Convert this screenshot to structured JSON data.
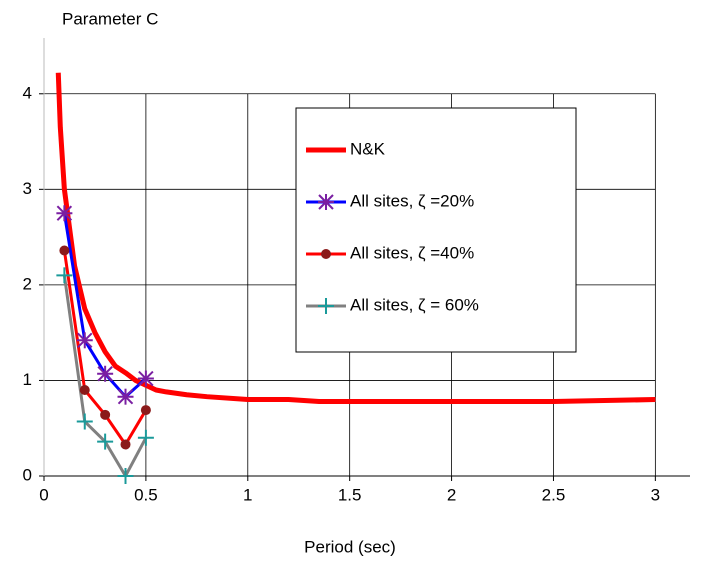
{
  "chart_data": {
    "type": "line",
    "y_label": "Parameter C",
    "x_label": "Period (sec)",
    "xlim": [
      0,
      3.17
    ],
    "ylim": [
      0,
      4.5
    ],
    "xticks": [
      0,
      0.5,
      1,
      1.5,
      2,
      2.5,
      3
    ],
    "yticks": [
      0,
      1,
      2,
      3,
      4
    ],
    "grid": true,
    "series": [
      {
        "name": "N&K",
        "color": "#ff0000",
        "width": 5,
        "marker": null,
        "x": [
          0.07,
          0.08,
          0.1,
          0.15,
          0.2,
          0.25,
          0.3,
          0.35,
          0.4,
          0.45,
          0.5,
          0.55,
          0.6,
          0.7,
          0.8,
          1.0,
          1.2,
          1.35,
          1.5,
          2.0,
          2.5,
          3.0
        ],
        "values": [
          4.22,
          3.65,
          3.0,
          2.2,
          1.75,
          1.5,
          1.3,
          1.15,
          1.08,
          1.0,
          0.95,
          0.9,
          0.88,
          0.85,
          0.83,
          0.8,
          0.8,
          0.78,
          0.78,
          0.78,
          0.78,
          0.8
        ]
      },
      {
        "name": "All sites, ζ =20%",
        "color": "#0000ff",
        "width": 3,
        "marker": "asterisk",
        "marker_color": "#7a1fa2",
        "x": [
          0.1,
          0.2,
          0.3,
          0.4,
          0.5
        ],
        "values": [
          2.75,
          1.42,
          1.07,
          0.83,
          1.02
        ]
      },
      {
        "name": "All sites, ζ =40%",
        "color": "#ff0000",
        "width": 3,
        "marker": "circle",
        "marker_color": "#8b1a1a",
        "x": [
          0.1,
          0.2,
          0.3,
          0.4,
          0.5
        ],
        "values": [
          2.36,
          0.9,
          0.64,
          0.33,
          0.69
        ]
      },
      {
        "name": "All sites, ζ = 60%",
        "color": "#808080",
        "width": 3,
        "marker": "plus",
        "marker_color": "#1a9a9a",
        "x": [
          0.1,
          0.2,
          0.3,
          0.4,
          0.5
        ],
        "values": [
          2.1,
          0.57,
          0.36,
          0.0,
          0.4
        ]
      }
    ]
  }
}
